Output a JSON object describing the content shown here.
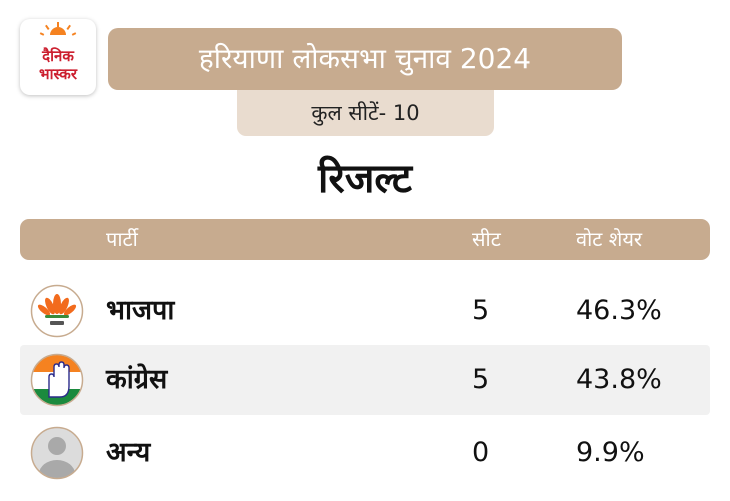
{
  "brand": {
    "line1": "दैनिक",
    "line2": "भास्कर",
    "accent": "#f58220",
    "text_color": "#cc1f2f"
  },
  "header": {
    "title": "हरियाणा लोकसभा चुनाव 2024",
    "subtitle": "कुल सीटें- 10",
    "heading": "रिजल्ट"
  },
  "table": {
    "columns": {
      "party": "पार्टी",
      "seats": "सीट",
      "vote_share": "वोट शेयर"
    },
    "rows": [
      {
        "party": "भाजपा",
        "seats": "5",
        "vote_share": "46.3%",
        "icon": "lotus-icon"
      },
      {
        "party": "कांग्रेस",
        "seats": "5",
        "vote_share": "43.8%",
        "icon": "hand-icon"
      },
      {
        "party": "अन्य",
        "seats": "0",
        "vote_share": "9.9%",
        "icon": "person-avatar-icon"
      }
    ]
  },
  "colors": {
    "banner": "#c7ab8f",
    "subtitle_bg": "#e9dccf",
    "row_alt": "#f1f1f1"
  }
}
